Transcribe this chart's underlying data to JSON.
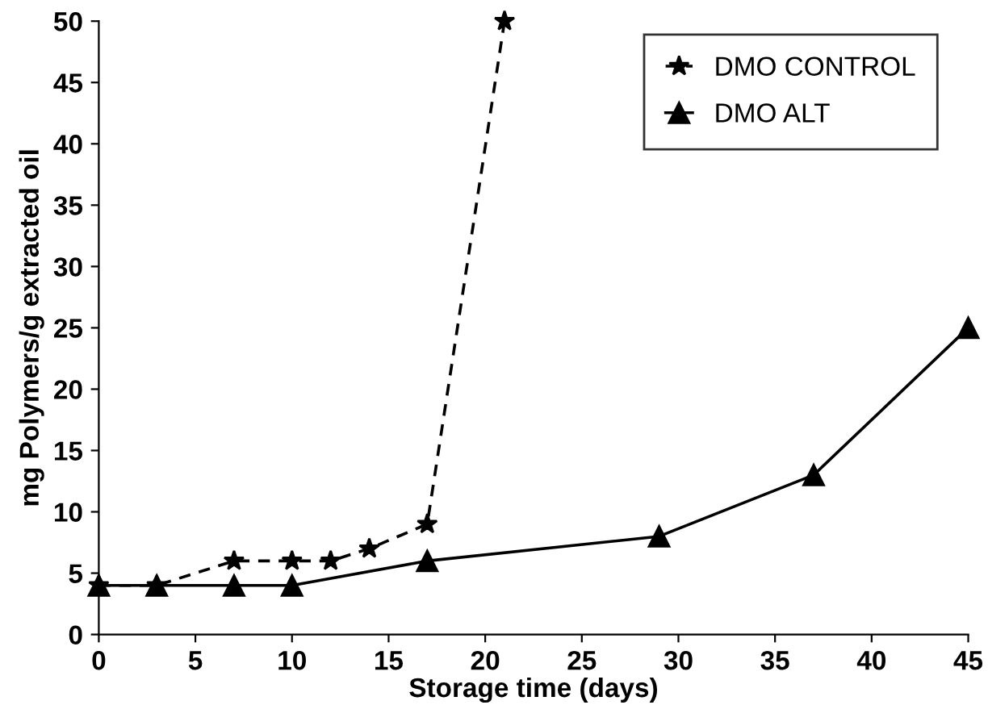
{
  "chart_data": {
    "type": "line",
    "xlabel": "Storage time (days)",
    "ylabel": "mg Polymers/g extracted oil",
    "series": [
      {
        "name": "DMO CONTROL",
        "color": "#000000",
        "marker": "star",
        "line_style": "dashed",
        "x": [
          0,
          3,
          7,
          10,
          12,
          14,
          17,
          21
        ],
        "values": [
          4,
          4,
          6,
          6,
          6,
          7,
          9,
          50
        ]
      },
      {
        "name": "DMO ALT",
        "color": "#000000",
        "marker": "triangle",
        "line_style": "solid",
        "x": [
          0,
          3,
          7,
          10,
          17,
          29,
          37,
          45
        ],
        "values": [
          4,
          4,
          4,
          4,
          6,
          8,
          13,
          25
        ]
      }
    ],
    "xlim": [
      0,
      45
    ],
    "ylim": [
      0,
      50
    ],
    "xticks": [
      0,
      5,
      10,
      15,
      20,
      25,
      30,
      35,
      40,
      45
    ],
    "yticks": [
      0,
      5,
      10,
      15,
      20,
      25,
      30,
      35,
      40,
      45,
      50
    ],
    "grid": false,
    "legend": "top right"
  }
}
